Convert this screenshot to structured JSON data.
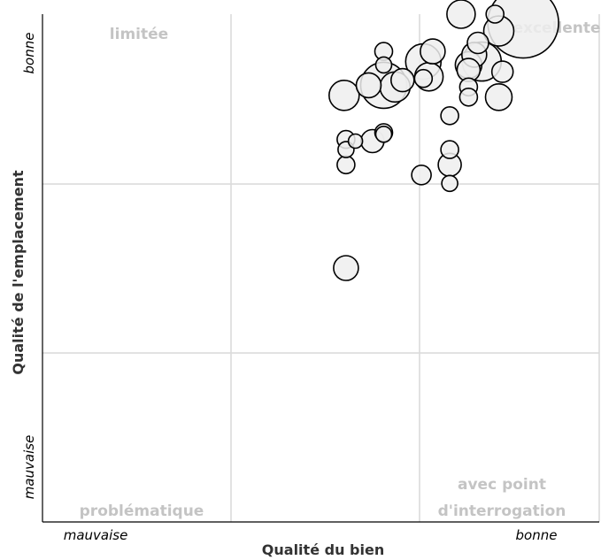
{
  "chart_data": {
    "type": "scatter",
    "xlabel": "Qualité du bien",
    "ylabel": "Qualité de l'emplacement",
    "x_axis": {
      "low_label": "mauvaise",
      "high_label": "bonne"
    },
    "y_axis": {
      "low_label": "mauvaise",
      "high_label": "bonne"
    },
    "xlim": [
      0,
      3
    ],
    "ylim": [
      0,
      3
    ],
    "grid": true,
    "quadrant_labels": {
      "top_left": "limitée",
      "top_right": "excellente",
      "bottom_left": "problématique",
      "bottom_right": [
        "avec point",
        "d'interrogation"
      ]
    },
    "points": [
      {
        "x": 2.22,
        "y": 3.0,
        "size": 16
      },
      {
        "x": 2.4,
        "y": 3.0,
        "size": 10
      },
      {
        "x": 2.55,
        "y": 2.95,
        "size": 40
      },
      {
        "x": 2.42,
        "y": 2.9,
        "size": 17
      },
      {
        "x": 2.31,
        "y": 2.83,
        "size": 12
      },
      {
        "x": 2.07,
        "y": 2.78,
        "size": 14
      },
      {
        "x": 2.02,
        "y": 2.72,
        "size": 20
      },
      {
        "x": 1.81,
        "y": 2.78,
        "size": 10
      },
      {
        "x": 1.81,
        "y": 2.7,
        "size": 9
      },
      {
        "x": 2.29,
        "y": 2.76,
        "size": 14
      },
      {
        "x": 2.33,
        "y": 2.72,
        "size": 22
      },
      {
        "x": 2.26,
        "y": 2.7,
        "size": 15
      },
      {
        "x": 2.26,
        "y": 2.67,
        "size": 13
      },
      {
        "x": 2.44,
        "y": 2.66,
        "size": 12
      },
      {
        "x": 2.05,
        "y": 2.63,
        "size": 16
      },
      {
        "x": 2.02,
        "y": 2.62,
        "size": 10
      },
      {
        "x": 1.91,
        "y": 2.61,
        "size": 13
      },
      {
        "x": 1.73,
        "y": 2.58,
        "size": 14
      },
      {
        "x": 1.81,
        "y": 2.58,
        "size": 26
      },
      {
        "x": 1.87,
        "y": 2.57,
        "size": 17
      },
      {
        "x": 2.26,
        "y": 2.57,
        "size": 10
      },
      {
        "x": 1.6,
        "y": 2.52,
        "size": 17
      },
      {
        "x": 2.26,
        "y": 2.51,
        "size": 10
      },
      {
        "x": 2.42,
        "y": 2.51,
        "size": 15
      },
      {
        "x": 2.16,
        "y": 2.4,
        "size": 10
      },
      {
        "x": 1.81,
        "y": 2.3,
        "size": 10
      },
      {
        "x": 1.81,
        "y": 2.29,
        "size": 9
      },
      {
        "x": 1.61,
        "y": 2.26,
        "size": 10
      },
      {
        "x": 1.75,
        "y": 2.25,
        "size": 13
      },
      {
        "x": 1.66,
        "y": 2.25,
        "size": 8
      },
      {
        "x": 1.61,
        "y": 2.2,
        "size": 9
      },
      {
        "x": 2.16,
        "y": 2.2,
        "size": 10
      },
      {
        "x": 1.61,
        "y": 2.11,
        "size": 10
      },
      {
        "x": 2.16,
        "y": 2.11,
        "size": 13
      },
      {
        "x": 2.01,
        "y": 2.05,
        "size": 11
      },
      {
        "x": 2.16,
        "y": 2.0,
        "size": 9
      },
      {
        "x": 1.61,
        "y": 1.5,
        "size": 14
      }
    ]
  }
}
